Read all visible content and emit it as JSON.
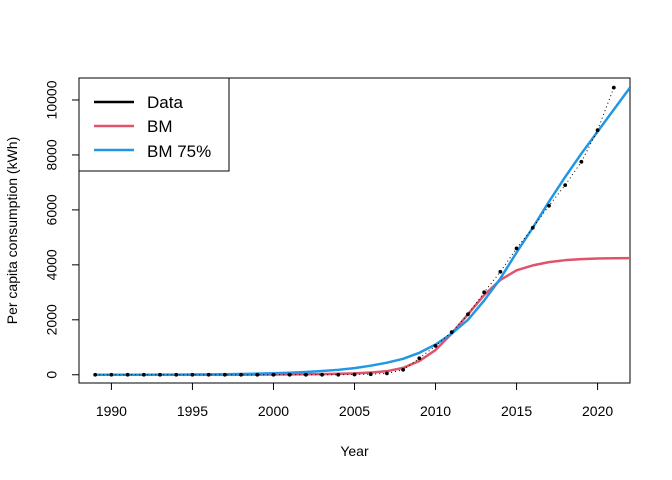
{
  "chart_data": {
    "type": "line",
    "title": "",
    "xlabel": "Year",
    "ylabel": "Per capita consumption (kWh)",
    "xlim": [
      1988,
      2022
    ],
    "ylim": [
      -300,
      10800
    ],
    "x_ticks": [
      1990,
      1995,
      2000,
      2005,
      2010,
      2015,
      2020
    ],
    "y_ticks": [
      0,
      2000,
      4000,
      6000,
      8000,
      10000
    ],
    "legend_position": "top-left",
    "grid": false,
    "series": [
      {
        "name": "Data",
        "style": "points-dotted",
        "color": "#000000",
        "x": [
          1989,
          1990,
          1991,
          1992,
          1993,
          1994,
          1995,
          1996,
          1997,
          1998,
          1999,
          2000,
          2001,
          2002,
          2003,
          2004,
          2005,
          2006,
          2007,
          2008,
          2009,
          2010,
          2011,
          2012,
          2013,
          2014,
          2015,
          2016,
          2017,
          2018,
          2019,
          2020,
          2021
        ],
        "values": [
          0,
          0,
          0,
          0,
          0,
          0,
          0,
          0,
          0,
          0,
          0,
          0,
          0,
          0,
          0,
          0,
          10,
          20,
          50,
          180,
          600,
          1050,
          1550,
          2200,
          3000,
          3750,
          4600,
          5350,
          6150,
          6900,
          7750,
          8900,
          10450
        ]
      },
      {
        "name": "BM",
        "style": "line",
        "color": "#DF536B",
        "x": [
          1989,
          1990,
          1991,
          1992,
          1993,
          1994,
          1995,
          1996,
          1997,
          1998,
          1999,
          2000,
          2001,
          2002,
          2003,
          2004,
          2005,
          2006,
          2007,
          2008,
          2009,
          2010,
          2011,
          2012,
          2013,
          2014,
          2015,
          2016,
          2017,
          2018,
          2019,
          2020,
          2021,
          2022
        ],
        "values": [
          0,
          0,
          0,
          0,
          0,
          0,
          0,
          0,
          0,
          0,
          5,
          8,
          12,
          18,
          25,
          35,
          50,
          80,
          130,
          250,
          500,
          900,
          1500,
          2200,
          2900,
          3450,
          3800,
          3980,
          4100,
          4170,
          4210,
          4230,
          4240,
          4245
        ]
      },
      {
        "name": "BM 75%",
        "style": "line",
        "color": "#2297E6",
        "x": [
          1989,
          1990,
          1991,
          1992,
          1993,
          1994,
          1995,
          1996,
          1997,
          1998,
          1999,
          2000,
          2001,
          2002,
          2003,
          2004,
          2005,
          2006,
          2007,
          2008,
          2009,
          2010,
          2011,
          2012,
          2013,
          2014,
          2015,
          2016,
          2017,
          2018,
          2019,
          2020,
          2021,
          2022
        ],
        "values": [
          0,
          0,
          0,
          2,
          4,
          6,
          10,
          15,
          20,
          28,
          40,
          55,
          75,
          100,
          135,
          180,
          240,
          330,
          440,
          580,
          800,
          1100,
          1500,
          2000,
          2700,
          3500,
          4450,
          5350,
          6300,
          7200,
          8050,
          8850,
          9650,
          10450
        ]
      }
    ]
  }
}
